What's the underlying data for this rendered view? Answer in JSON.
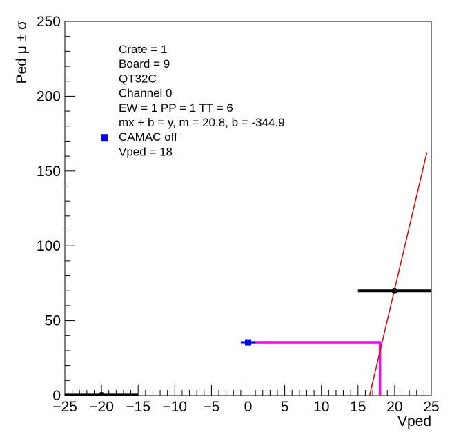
{
  "chart_data": {
    "type": "scatter",
    "title": "",
    "xlabel": "Vped",
    "ylabel": "Ped μ ± σ",
    "xlim": [
      -25,
      25
    ],
    "ylim": [
      0,
      250
    ],
    "x_ticks": [
      -25,
      -20,
      -15,
      -10,
      -5,
      0,
      5,
      10,
      15,
      20,
      25
    ],
    "y_ticks": [
      0,
      50,
      100,
      150,
      200,
      250
    ],
    "x_tick_labels": [
      "−25",
      "−20",
      "−15",
      "−10",
      "−5",
      "0",
      "5",
      "10",
      "15",
      "20",
      "25"
    ],
    "y_tick_labels": [
      "0",
      "50",
      "100",
      "150",
      "200",
      "250"
    ],
    "grid": false,
    "points": [
      {
        "x": -20,
        "y": 0.3,
        "xerr": 5,
        "color": "#000000"
      },
      {
        "x": 20,
        "y": 70,
        "xerr": 5,
        "color": "#000000"
      }
    ],
    "camac_point": {
      "x": 0,
      "y": 35.5,
      "xerr": 1,
      "color": "#0000ee"
    },
    "fit": {
      "m": 20.8,
      "b": -344.9,
      "x_from": 16.58,
      "x_to": 24.4,
      "color": "#dd0000"
    },
    "vped_marker": {
      "x": 18,
      "y": 35.5,
      "x_from": 0,
      "color": "#ff00ff"
    },
    "legend": {
      "position": "top-left",
      "marker_color": "#0000ee",
      "lines": [
        "Crate = 1",
        "Board = 9",
        "QT32C",
        "Channel 0",
        "EW = 1 PP = 1 TT = 6",
        "mx + b = y, m = 20.8, b = -344.9",
        "CAMAC off",
        "Vped = 18"
      ]
    }
  }
}
